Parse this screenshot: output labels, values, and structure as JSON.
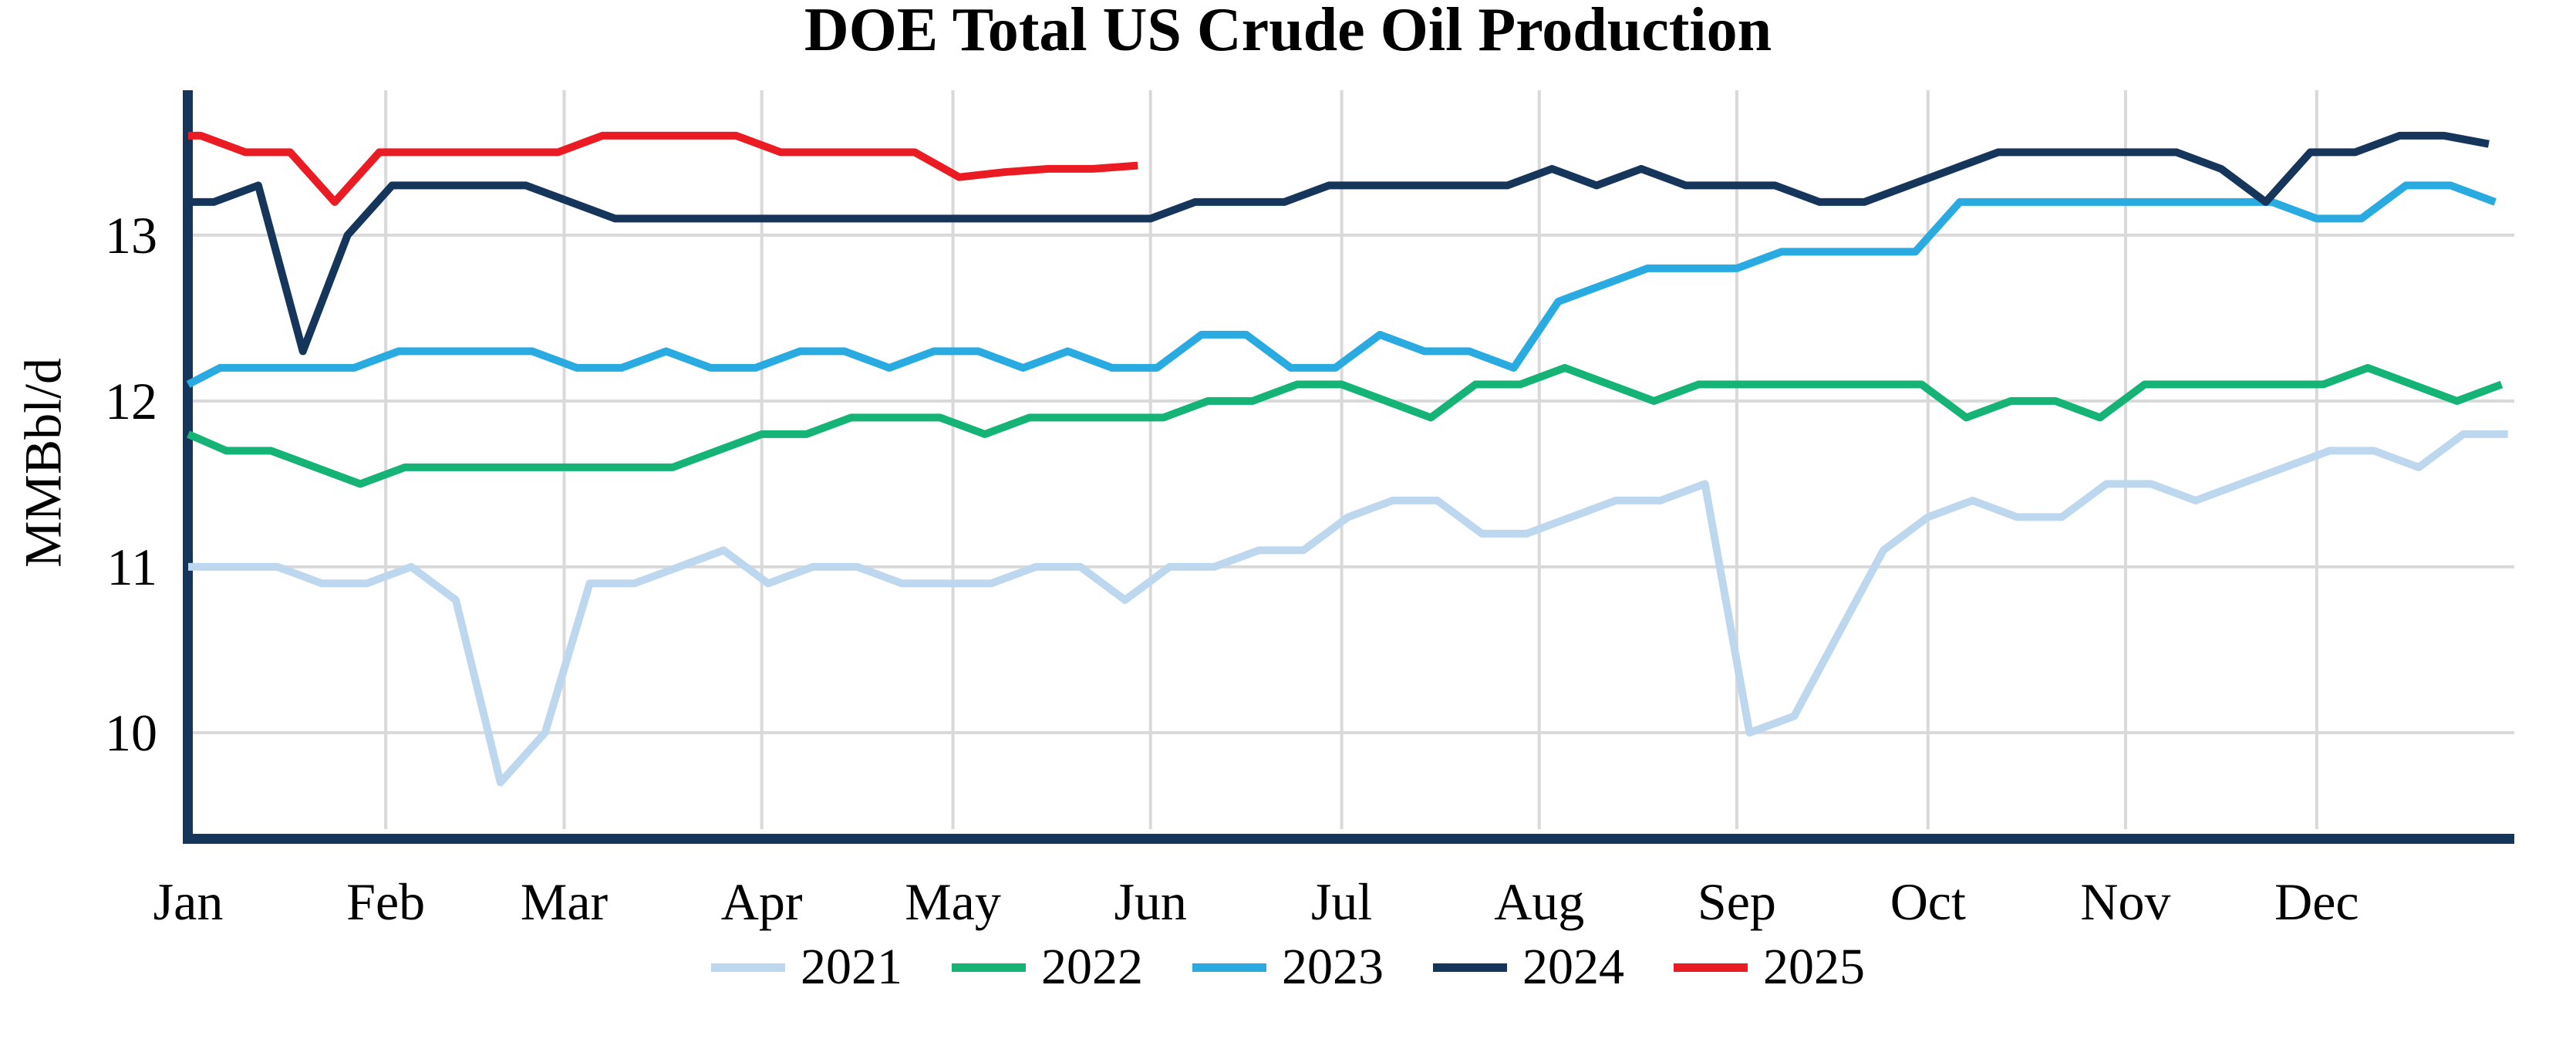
{
  "chart_data": {
    "type": "line",
    "title": "DOE Total US Crude Oil Production",
    "ylabel": "MMBbl/d",
    "x_tick_labels": [
      "Jan",
      "Feb",
      "Mar",
      "Apr",
      "May",
      "Jun",
      "Jul",
      "Aug",
      "Sep",
      "Oct",
      "Nov",
      "Dec"
    ],
    "month_start_days": [
      0,
      31,
      59,
      90,
      120,
      151,
      181,
      212,
      243,
      273,
      304,
      334
    ],
    "days_in_year": 365,
    "y_ticks": [
      10,
      11,
      12,
      13
    ],
    "ylim": [
      9.39,
      13.874
    ],
    "grid": true,
    "legend_position": "bottom-center",
    "colors": {
      "grid": "#D9D9D9",
      "axis_spine": "#16355B",
      "text": "#000000"
    },
    "series": [
      {
        "name": "2021",
        "color": "#BDD7EE",
        "first_report_day": 0,
        "lead_in_value": 11.0,
        "weekly_values": [
          11.0,
          11.0,
          11.0,
          10.9,
          10.9,
          11.0,
          10.8,
          9.7,
          10.0,
          10.9,
          10.9,
          11.0,
          11.1,
          10.9,
          11.0,
          11.0,
          10.9,
          10.9,
          10.9,
          11.0,
          11.0,
          10.8,
          11.0,
          11.0,
          11.1,
          11.1,
          11.3,
          11.4,
          11.4,
          11.2,
          11.2,
          11.3,
          11.4,
          11.4,
          11.5,
          10.0,
          10.1,
          10.6,
          11.1,
          11.3,
          11.4,
          11.3,
          11.3,
          11.5,
          11.5,
          11.4,
          11.5,
          11.6,
          11.7,
          11.7,
          11.6,
          11.8,
          11.8
        ]
      },
      {
        "name": "2022",
        "color": "#16B377",
        "first_report_day": 6,
        "lead_in_value": 11.8,
        "weekly_values": [
          11.7,
          11.7,
          11.6,
          11.5,
          11.6,
          11.6,
          11.6,
          11.6,
          11.6,
          11.6,
          11.6,
          11.7,
          11.8,
          11.8,
          11.9,
          11.9,
          11.9,
          11.8,
          11.9,
          11.9,
          11.9,
          11.9,
          12.0,
          12.0,
          12.1,
          12.1,
          12.0,
          11.9,
          12.1,
          12.1,
          12.2,
          12.1,
          12.0,
          12.1,
          12.1,
          12.1,
          12.1,
          12.1,
          12.1,
          11.9,
          12.0,
          12.0,
          11.9,
          12.1,
          12.1,
          12.1,
          12.1,
          12.1,
          12.2,
          12.1,
          12.0,
          12.1
        ]
      },
      {
        "name": "2023",
        "color": "#29ABE2",
        "first_report_day": 5,
        "lead_in_value": 12.1,
        "weekly_values": [
          12.2,
          12.2,
          12.2,
          12.2,
          12.3,
          12.3,
          12.3,
          12.3,
          12.2,
          12.2,
          12.3,
          12.2,
          12.2,
          12.3,
          12.3,
          12.2,
          12.3,
          12.3,
          12.2,
          12.3,
          12.2,
          12.2,
          12.4,
          12.4,
          12.2,
          12.2,
          12.4,
          12.3,
          12.3,
          12.2,
          12.6,
          12.7,
          12.8,
          12.8,
          12.8,
          12.9,
          12.9,
          12.9,
          12.9,
          13.2,
          13.2,
          13.2,
          13.2,
          13.2,
          13.2,
          13.2,
          13.2,
          13.1,
          13.1,
          13.3,
          13.3,
          13.2
        ]
      },
      {
        "name": "2024",
        "color": "#16355B",
        "first_report_day": 4,
        "lead_in_value": 13.2,
        "weekly_values": [
          13.2,
          13.3,
          12.3,
          13.0,
          13.3,
          13.3,
          13.3,
          13.3,
          13.2,
          13.1,
          13.1,
          13.1,
          13.1,
          13.1,
          13.1,
          13.1,
          13.1,
          13.1,
          13.1,
          13.1,
          13.1,
          13.1,
          13.2,
          13.2,
          13.2,
          13.3,
          13.3,
          13.3,
          13.3,
          13.3,
          13.4,
          13.3,
          13.4,
          13.3,
          13.3,
          13.3,
          13.2,
          13.2,
          13.3,
          13.4,
          13.5,
          13.5,
          13.5,
          13.5,
          13.5,
          13.4,
          13.2,
          13.5,
          13.5,
          13.6,
          13.6,
          13.55
        ]
      },
      {
        "name": "2025",
        "color": "#EB1B23",
        "first_report_day": 2,
        "lead_in_value": 13.6,
        "weekly_values": [
          13.6,
          13.5,
          13.5,
          13.2,
          13.5,
          13.5,
          13.5,
          13.5,
          13.5,
          13.6,
          13.6,
          13.6,
          13.6,
          13.5,
          13.5,
          13.5,
          13.5,
          13.35,
          13.38,
          13.4,
          13.4,
          13.42
        ]
      }
    ]
  }
}
